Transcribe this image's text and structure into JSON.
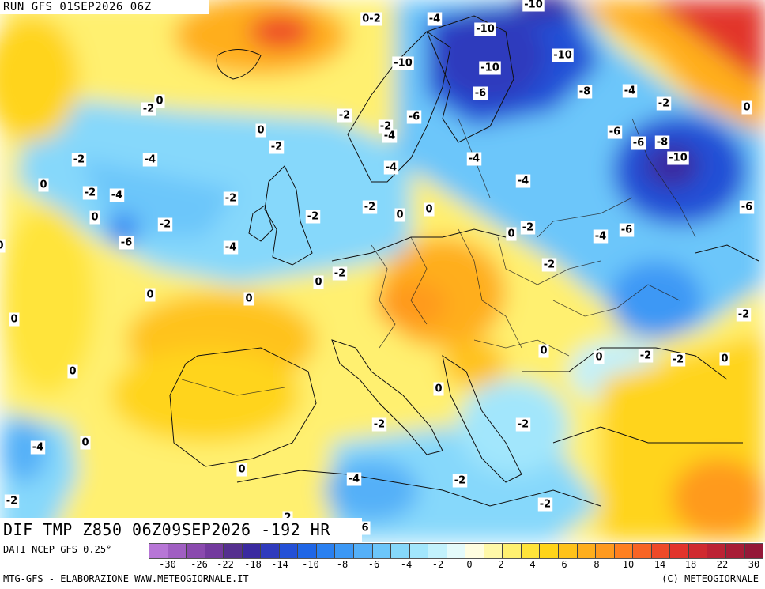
{
  "run_label": "RUN GFS 01SEP2026 06Z",
  "diff_label": "DIF TMP Z850 06Z09SEP2026 -192 HR",
  "footer": {
    "data_source": "DATI NCEP GFS 0.25°",
    "credits": "MTG-GFS - ELABORAZIONE WWW.METEOGIORNALE.IT",
    "copyright": "(C) METEOGIORNALE"
  },
  "legend": {
    "colors": [
      "#b776d6",
      "#a05fc2",
      "#8a4aae",
      "#733a9e",
      "#55308f",
      "#3a2aa0",
      "#2f3bbd",
      "#2450d6",
      "#1f66e6",
      "#2a80f0",
      "#3c98f5",
      "#55b0f8",
      "#6cc6fa",
      "#86d8fb",
      "#a2e6fc",
      "#c2f1fc",
      "#e4fafa",
      "#fffde0",
      "#fff8a8",
      "#fff070",
      "#ffe43a",
      "#ffd41a",
      "#ffc21a",
      "#ffae1c",
      "#ff9a1e",
      "#ff8020",
      "#f86424",
      "#ee4a28",
      "#e2342c",
      "#d02a30",
      "#bc2234",
      "#a81c36",
      "#941838"
    ],
    "ticks": [
      "-30",
      "-26",
      "-22",
      "-18",
      "-14",
      "-10",
      "-8",
      "-6",
      "-4",
      "-2",
      "0",
      "2",
      "4",
      "6",
      "8",
      "10",
      "14",
      "18",
      "22",
      "30"
    ]
  },
  "map": {
    "contour_labels": [
      {
        "text": "0-2"
      },
      {
        "text": "-4"
      },
      {
        "text": "-10"
      },
      {
        "text": "-10"
      },
      {
        "text": "-10"
      },
      {
        "text": "-10"
      },
      {
        "text": "-10"
      },
      {
        "text": "-6"
      },
      {
        "text": "-8"
      },
      {
        "text": "-4"
      },
      {
        "text": "-2"
      },
      {
        "text": "0"
      },
      {
        "text": "-2"
      },
      {
        "text": "0"
      },
      {
        "text": "-2"
      },
      {
        "text": "0"
      },
      {
        "text": "-2"
      },
      {
        "text": "-4"
      },
      {
        "text": "-6"
      },
      {
        "text": "-2"
      },
      {
        "text": "-6"
      },
      {
        "text": "-8"
      },
      {
        "text": "-6"
      },
      {
        "text": "-10"
      },
      {
        "text": "-4"
      },
      {
        "text": "-2"
      },
      {
        "text": "-4"
      },
      {
        "text": "-4"
      },
      {
        "text": "-2"
      },
      {
        "text": "0"
      },
      {
        "text": "-4"
      },
      {
        "text": "-2"
      },
      {
        "text": "-4"
      },
      {
        "text": "0"
      },
      {
        "text": "0"
      },
      {
        "text": "-2"
      },
      {
        "text": "-2"
      },
      {
        "text": "-6"
      },
      {
        "text": "0"
      },
      {
        "text": "-2"
      },
      {
        "text": "0"
      },
      {
        "text": "-2"
      },
      {
        "text": "-4"
      },
      {
        "text": "-6"
      },
      {
        "text": "-4"
      },
      {
        "text": "0"
      },
      {
        "text": "-2"
      },
      {
        "text": "0"
      },
      {
        "text": "0"
      },
      {
        "text": "0"
      },
      {
        "text": "0"
      },
      {
        "text": "-2"
      },
      {
        "text": "-2"
      },
      {
        "text": "0"
      },
      {
        "text": "0"
      },
      {
        "text": "0"
      },
      {
        "text": "0"
      },
      {
        "text": "-2"
      },
      {
        "text": "-2"
      },
      {
        "text": "0"
      },
      {
        "text": "-4"
      },
      {
        "text": "0"
      },
      {
        "text": "-4"
      },
      {
        "text": "-2"
      },
      {
        "text": "-2"
      },
      {
        "text": "0"
      },
      {
        "text": "-2"
      },
      {
        "text": "2"
      },
      {
        "text": "6"
      },
      {
        "text": "-6"
      },
      {
        "text": "-2"
      },
      {
        "text": "-2"
      }
    ]
  }
}
